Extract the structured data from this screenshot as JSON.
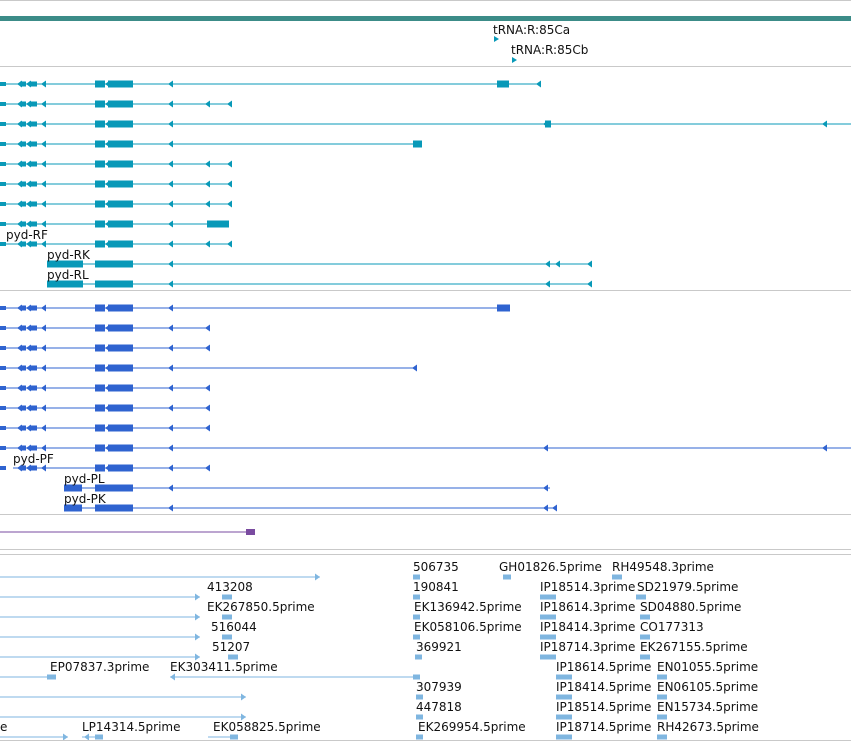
{
  "colors": {
    "topbar": "#3c8c88",
    "cyan_gene": "#0899b8",
    "blue_gene": "#2f63d0",
    "purple_gene": "#7a4ba0",
    "est": "#7fb6e0",
    "divider": "#c9c9c9"
  },
  "trna": {
    "labels": [
      "tRNA:R:85Ca",
      "tRNA:R:85Cb"
    ]
  },
  "transcripts": {
    "cyan_labels": [
      "pyd-RF",
      "pyd-RK",
      "pyd-RL"
    ],
    "blue_labels": [
      "pyd-PF",
      "pyd-PL",
      "pyd-PK"
    ]
  },
  "est_labels": {
    "l413208": "413208",
    "l506735": "506735",
    "lGH01826": "GH01826.5prime",
    "lRH49548": "RH49548.3prime",
    "l190841": "190841",
    "lIP18514_3": "IP18514.3prime",
    "lSD21979": "SD21979.5prime",
    "lEK267850": "EK267850.5prime",
    "lEK136942": "EK136942.5prime",
    "lIP18614_3": "IP18614.3prime",
    "lSD04880": "SD04880.5prime",
    "l516044": "516044",
    "lEK058106": "EK058106.5prime",
    "lIP18414_3": "IP18414.3prime",
    "lCO177313": "CO177313",
    "l51207": "51207",
    "l369921": "369921",
    "lIP18714_3": "IP18714.3prime",
    "lEK267155": "EK267155.5prime",
    "lEP07837": "EP07837.3prime",
    "lEK303411": "EK303411.5prime",
    "lIP18614_5": "IP18614.5prime",
    "lEN01055": "EN01055.5prime",
    "l307939": "307939",
    "lIP18414_5": "IP18414.5prime",
    "lEN06105": "EN06105.5prime",
    "l447818": "447818",
    "lIP18514_5": "IP18514.5prime",
    "lEN15734": "EN15734.5prime",
    "le": "e",
    "lLP14314": "LP14314.5prime",
    "lEK058825": "EK058825.5prime",
    "lEK269954": "EK269954.5prime",
    "lIP18714_5": "IP18714.5prime",
    "lRH42673": "RH42673.5prime"
  }
}
